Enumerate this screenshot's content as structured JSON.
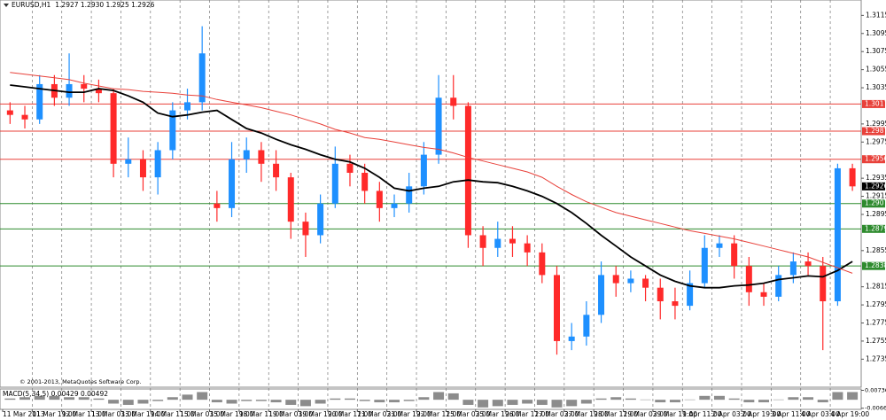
{
  "chart_data": {
    "type": "candlestick",
    "title": "EURUSD,H1",
    "quote": "1.2927 1.2930 1.2925 1.2926",
    "copyright": "© 2001-2013, MetaQuotes Software Corp.",
    "x_labels": [
      "11 Mar 2013",
      "11 Mar 19:00",
      "12 Mar 11:00",
      "13 Mar 03:00",
      "13 Mar 19:00",
      "14 Mar 11:00",
      "15 Mar 03:00",
      "15 Mar 19:00",
      "18 Mar 11:00",
      "19 Mar 03:00",
      "19 Mar 19:00",
      "20 Mar 11:00",
      "21 Mar 03:00",
      "21 Mar 19:00",
      "22 Mar 11:00",
      "25 Mar 03:00",
      "25 Mar 19:00",
      "26 Mar 11:00",
      "27 Mar 03:00",
      "27 Mar 19:00",
      "28 Mar 11:00",
      "29 Mar 03:00",
      "29 Mar 19:00",
      "1 Apr 11:00",
      "2 Apr 03:00",
      "2 Apr 19:00",
      "3 Apr 11:00",
      "4 Apr 03:00",
      "4 Apr 19:00"
    ],
    "open": [
      1.301,
      1.3005,
      1.3,
      1.3039,
      1.3024,
      1.3039,
      1.3034,
      1.3029,
      1.2951,
      1.2956,
      1.2936,
      1.2966,
      1.301,
      1.3019,
      1.2907,
      1.2902,
      1.2956,
      1.2966,
      1.2951,
      1.2936,
      1.2887,
      1.2872,
      1.2907,
      1.2951,
      1.2941,
      1.2921,
      1.2902,
      1.2907,
      1.2926,
      1.2961,
      1.3024,
      1.3015,
      1.2872,
      1.2858,
      1.2868,
      1.2863,
      1.2853,
      1.2828,
      1.2755,
      1.276,
      1.2784,
      1.2828,
      1.2819,
      1.2824,
      1.2814,
      1.2799,
      1.2794,
      1.2819,
      1.2858,
      1.2863,
      1.2838,
      1.2809,
      1.2804,
      1.2828,
      1.2843,
      1.2838,
      1.2799,
      1.2946
    ],
    "high": [
      1.3019,
      1.3015,
      1.3049,
      1.3049,
      1.3073,
      1.3049,
      1.3044,
      1.3034,
      1.298,
      1.2966,
      1.2975,
      1.3019,
      1.3034,
      1.3103,
      1.2921,
      1.2975,
      1.298,
      1.2975,
      1.2966,
      1.2941,
      1.2897,
      1.2917,
      1.297,
      1.2961,
      1.2951,
      1.2931,
      1.2917,
      1.2941,
      1.2975,
      1.3049,
      1.3049,
      1.3019,
      1.2882,
      1.2887,
      1.2882,
      1.2872,
      1.2863,
      1.2838,
      1.2775,
      1.2799,
      1.2843,
      1.2838,
      1.2833,
      1.2828,
      1.2824,
      1.2814,
      1.2833,
      1.2872,
      1.2872,
      1.2872,
      1.2848,
      1.2819,
      1.2838,
      1.2853,
      1.2853,
      1.2848,
      1.2951,
      1.2951
    ],
    "low": [
      1.2995,
      1.299,
      1.2995,
      1.3015,
      1.3015,
      1.3019,
      1.3019,
      1.2936,
      1.2936,
      1.2921,
      1.2917,
      1.2956,
      1.3,
      1.301,
      1.2887,
      1.2892,
      1.2941,
      1.2931,
      1.2921,
      1.2868,
      1.2848,
      1.2863,
      1.2902,
      1.2926,
      1.2907,
      1.2887,
      1.2892,
      1.2897,
      1.2917,
      1.2951,
      1.3,
      1.2858,
      1.2838,
      1.2848,
      1.2848,
      1.2838,
      1.2819,
      1.274,
      1.2745,
      1.275,
      1.2775,
      1.2804,
      1.2809,
      1.2799,
      1.2779,
      1.2779,
      1.2789,
      1.2814,
      1.2848,
      1.2824,
      1.2794,
      1.2794,
      1.2799,
      1.2819,
      1.2828,
      1.2745,
      1.2794,
      1.2921
    ],
    "close": [
      1.3005,
      1.3,
      1.3039,
      1.3024,
      1.3039,
      1.3034,
      1.3029,
      1.2951,
      1.2956,
      1.2936,
      1.2966,
      1.301,
      1.3019,
      1.3073,
      1.2902,
      1.2956,
      1.2966,
      1.2951,
      1.2936,
      1.2887,
      1.2872,
      1.2907,
      1.2951,
      1.2941,
      1.2921,
      1.2902,
      1.2907,
      1.2926,
      1.2961,
      1.3024,
      1.3015,
      1.2872,
      1.2858,
      1.2868,
      1.2863,
      1.2853,
      1.2828,
      1.2755,
      1.276,
      1.2784,
      1.2828,
      1.2819,
      1.2824,
      1.2814,
      1.2799,
      1.2794,
      1.2819,
      1.2858,
      1.2863,
      1.2838,
      1.2809,
      1.2804,
      1.2828,
      1.2843,
      1.2838,
      1.2799,
      1.2946,
      1.2926
    ],
    "up_color": "#1e90ff",
    "down_color": "#ff2a2a",
    "moving_averages": [
      {
        "color": "#000000",
        "values": [
          1.3038,
          1.3036,
          1.3034,
          1.3032,
          1.303,
          1.303,
          1.3034,
          1.3032,
          1.3026,
          1.3019,
          1.3007,
          1.3003,
          1.3005,
          1.3008,
          1.301,
          1.3,
          1.299,
          1.2985,
          1.2978,
          1.2972,
          1.2967,
          1.2961,
          1.2956,
          1.2953,
          1.2946,
          1.2936,
          1.2924,
          1.2921,
          1.2924,
          1.2926,
          1.2931,
          1.2933,
          1.2931,
          1.293,
          1.2926,
          1.2921,
          1.2915,
          1.2907,
          1.2897,
          1.2885,
          1.2872,
          1.286,
          1.2848,
          1.2838,
          1.2828,
          1.2821,
          1.2816,
          1.2814,
          1.2814,
          1.2816,
          1.2817,
          1.2819,
          1.2823,
          1.2825,
          1.2827,
          1.2826,
          1.2833,
          1.2843
        ]
      },
      {
        "color": "#e8413a",
        "values": [
          1.3052,
          1.305,
          1.3048,
          1.3046,
          1.3044,
          1.304,
          1.3037,
          1.3034,
          1.3033,
          1.3031,
          1.303,
          1.3029,
          1.3027,
          1.3026,
          1.3022,
          1.3019,
          1.3016,
          1.3013,
          1.3009,
          1.3005,
          1.3,
          1.2995,
          1.2989,
          1.2985,
          1.298,
          1.2978,
          1.2975,
          1.2972,
          1.2969,
          1.2967,
          1.2963,
          1.2958,
          1.2954,
          1.295,
          1.2946,
          1.2942,
          1.2936,
          1.2926,
          1.2917,
          1.2909,
          1.2903,
          1.2897,
          1.2893,
          1.2889,
          1.2885,
          1.2881,
          1.2877,
          1.2874,
          1.2871,
          1.2868,
          1.2864,
          1.286,
          1.2856,
          1.2852,
          1.2848,
          1.2842,
          1.2836,
          1.283
        ]
      }
    ],
    "levels": [
      {
        "value": 1.3017,
        "color": "#e8413a"
      },
      {
        "value": 1.2987,
        "color": "#e8413a"
      },
      {
        "value": 1.2956,
        "color": "#e8413a"
      },
      {
        "value": 1.2907,
        "color": "#2e8b2e"
      },
      {
        "value": 1.2879,
        "color": "#2e8b2e"
      },
      {
        "value": 1.2838,
        "color": "#2e8b2e"
      }
    ],
    "current_price": 1.2926,
    "ylim": [
      1.2704,
      1.3132
    ],
    "yticks": [
      1.3115,
      1.3095,
      1.3075,
      1.3055,
      1.3035,
      1.2995,
      1.2975,
      1.2935,
      1.2915,
      1.2895,
      1.2855,
      1.2815,
      1.2795,
      1.2775,
      1.2755,
      1.2735
    ],
    "macd": {
      "title": "MACD(5,34,5) 0.00429 0.00492",
      "color": "#8c8c8c",
      "ylim": [
        -0.0075,
        0.0084
      ],
      "yticks": [
        0.00736,
        -0.00661
      ],
      "values": [
        0.001,
        0.002,
        0.003,
        0.003,
        0.002,
        0.002,
        0.001,
        -0.003,
        -0.004,
        -0.003,
        -0.001,
        0.002,
        0.004,
        0.006,
        -0.002,
        -0.003,
        -0.001,
        -0.001,
        -0.002,
        -0.004,
        -0.005,
        -0.003,
        0.001,
        0.001,
        -0.001,
        -0.002,
        -0.002,
        -0.001,
        0.002,
        0.006,
        0.005,
        -0.004,
        -0.006,
        -0.005,
        -0.004,
        -0.003,
        -0.004,
        -0.006,
        -0.005,
        -0.003,
        0.001,
        0.002,
        0.001,
        0.0002,
        -0.002,
        -0.002,
        0.0002,
        0.003,
        0.003,
        0.001,
        -0.002,
        -0.002,
        0.0002,
        0.002,
        0.002,
        -0.002,
        0.006,
        0.006
      ]
    }
  }
}
